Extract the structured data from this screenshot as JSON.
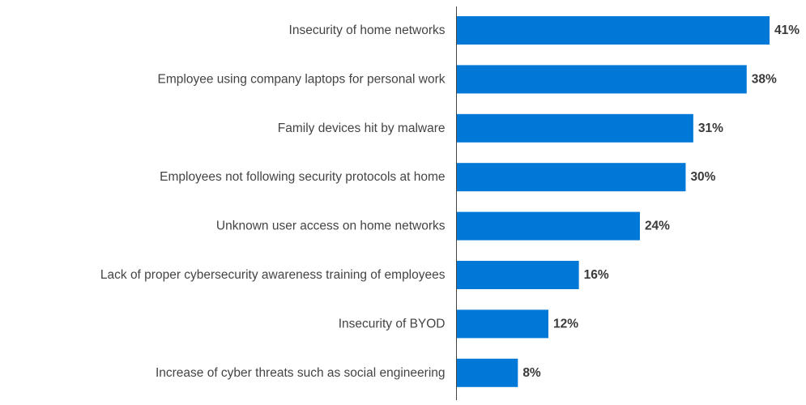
{
  "chart_data": {
    "type": "bar",
    "orientation": "horizontal",
    "title": "",
    "xlabel": "",
    "ylabel": "",
    "xlim": [
      0,
      41
    ],
    "grid": false,
    "legend": "none",
    "bar_color": "#0078D7",
    "value_suffix": "%",
    "categories": [
      "Insecurity of home networks",
      "Employee using company laptops for personal work",
      "Family devices hit by malware",
      "Employees not following security protocols at home",
      "Unknown user access on home networks",
      "Lack of proper cybersecurity awareness training of employees",
      "Insecurity of BYOD",
      "Increase of cyber threats such as social engineering"
    ],
    "values": [
      41,
      38,
      31,
      30,
      24,
      16,
      12,
      8
    ],
    "value_labels": [
      "41%",
      "38%",
      "31%",
      "30%",
      "24%",
      "16%",
      "12%",
      "8%"
    ]
  }
}
